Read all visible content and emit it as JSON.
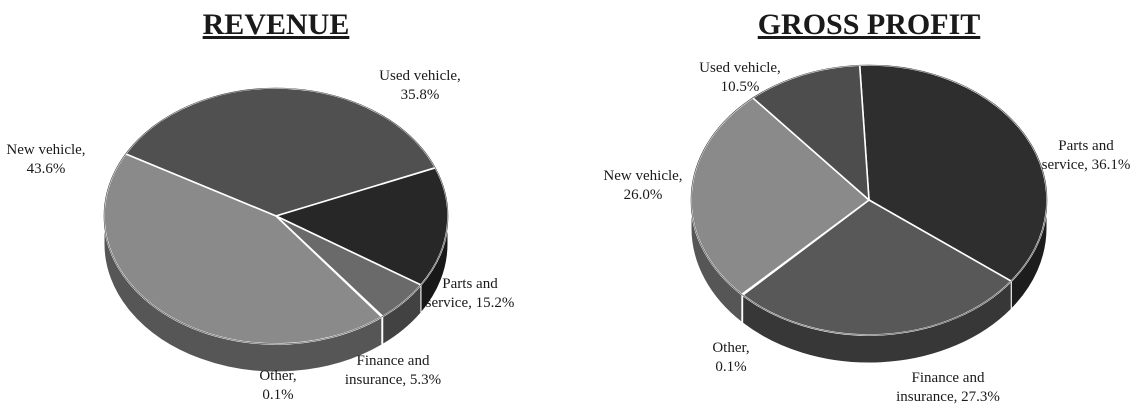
{
  "chart_data": [
    {
      "type": "pie",
      "title": "REVENUE",
      "slices": [
        {
          "label": [
            "Used vehicle,",
            "35.8%"
          ],
          "value": 35.8,
          "color": "#505050"
        },
        {
          "label": [
            "Parts and",
            "service, 15.2%"
          ],
          "value": 15.2,
          "color": "#272727"
        },
        {
          "label": [
            "Finance and",
            "insurance, 5.3%"
          ],
          "value": 5.3,
          "color": "#6a6a6a"
        },
        {
          "label": [
            "Other,",
            "0.1%"
          ],
          "value": 0.1,
          "color": "#9a9a9a"
        },
        {
          "label": [
            "New vehicle,",
            "43.6%"
          ],
          "value": 43.6,
          "color": "#8a8a8a"
        }
      ]
    },
    {
      "type": "pie",
      "title": "GROSS PROFIT",
      "slices": [
        {
          "label": [
            "Parts and",
            "service, 36.1%"
          ],
          "value": 36.1,
          "color": "#2e2e2e"
        },
        {
          "label": [
            "Finance and",
            "insurance, 27.3%"
          ],
          "value": 27.3,
          "color": "#585858"
        },
        {
          "label": [
            "Other,",
            "0.1%"
          ],
          "value": 0.1,
          "color": "#9a9a9a"
        },
        {
          "label": [
            "New vehicle,",
            "26.0%"
          ],
          "value": 26.0,
          "color": "#8a8a8a"
        },
        {
          "label": [
            "Used vehicle,",
            "10.5%"
          ],
          "value": 10.5,
          "color": "#4d4d4d"
        }
      ]
    }
  ]
}
